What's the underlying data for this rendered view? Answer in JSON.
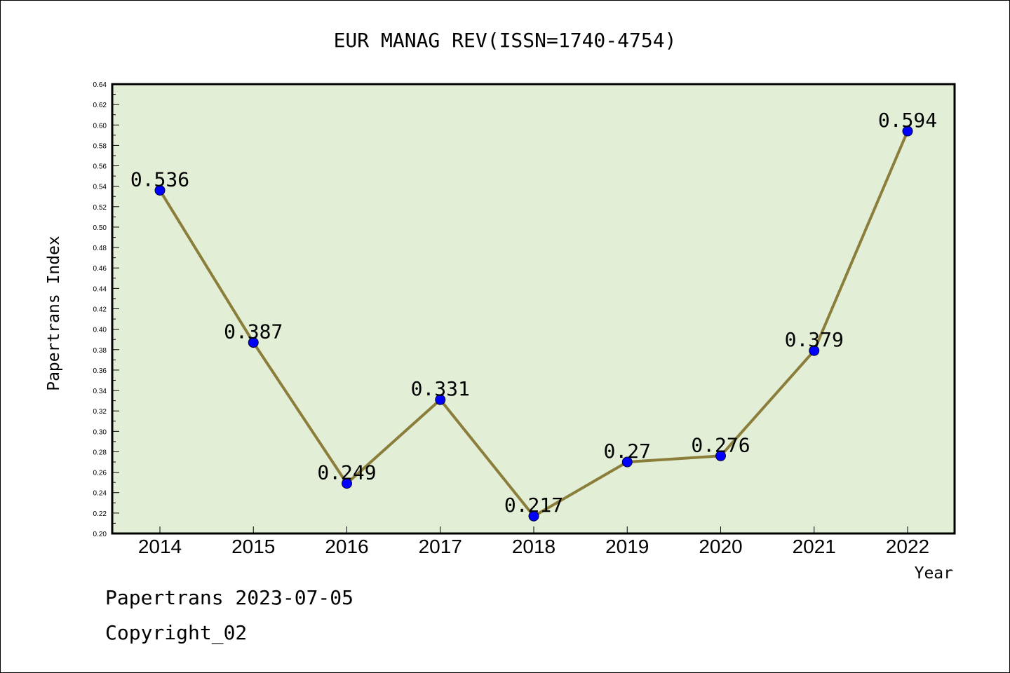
{
  "chart_data": {
    "type": "line",
    "title": "EUR MANAG REV(ISSN=1740-4754)",
    "xlabel": "Year",
    "ylabel": "Papertrans Index",
    "categories": [
      "2014",
      "2015",
      "2016",
      "2017",
      "2018",
      "2019",
      "2020",
      "2021",
      "2022"
    ],
    "series": [
      {
        "values": [
          0.536,
          0.387,
          0.249,
          0.331,
          0.217,
          0.27,
          0.276,
          0.379,
          0.594
        ],
        "labels": [
          "0.536",
          "0.387",
          "0.249",
          "0.331",
          "0.217",
          "0.27",
          "0.276",
          "0.379",
          "0.594"
        ],
        "line_color": "#8b7d3a",
        "marker_color": "#0000ff"
      }
    ],
    "ylim": [
      0.2,
      0.64
    ],
    "yticks": [
      "0.20",
      "0.22",
      "0.24",
      "0.26",
      "0.28",
      "0.30",
      "0.32",
      "0.34",
      "0.36",
      "0.38",
      "0.40",
      "0.42",
      "0.44",
      "0.46",
      "0.48",
      "0.50",
      "0.52",
      "0.54",
      "0.56",
      "0.58",
      "0.60",
      "0.62",
      "0.64"
    ],
    "plot_background": "#e2efd6",
    "grid": false
  },
  "footer": {
    "line1": "Papertrans 2023-07-05",
    "line2": "Copyright_02"
  }
}
